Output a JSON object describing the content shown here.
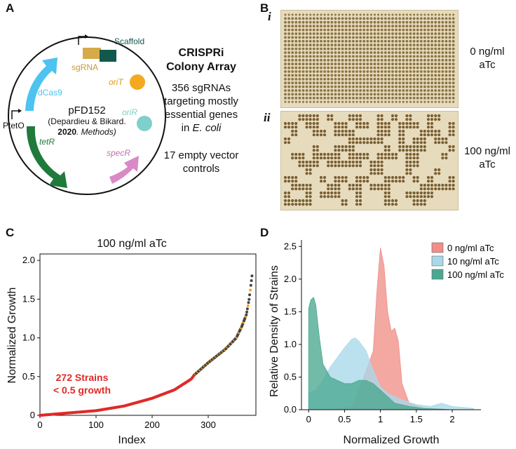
{
  "panels": {
    "A": "A",
    "B": "B",
    "C": "C",
    "D": "D"
  },
  "panelA": {
    "plasmid_name": "pFD152",
    "citation_line1": "(Depardieu & Bikard.",
    "citation_year": "2020",
    "citation_journal": ". Methods)",
    "features": {
      "scaffold": "Scaffold",
      "sgrna": "sgRNA",
      "orit": "oriT",
      "orir": "oriR",
      "dcas9": "dCas9",
      "tetr": "tetR",
      "specr": "specR",
      "ptet": "PtetO"
    },
    "colors": {
      "dcas9": "#4dc3f0",
      "tetr": "#1f7a3c",
      "specr": "#d98ac6",
      "sgrna": "#d6aa4a",
      "scaffold": "#11584d",
      "orit": "#f5a921",
      "orir": "#7fcfcb"
    },
    "title_line1": "CRISPRi",
    "title_line2": "Colony Array",
    "desc_line1": "356 sgRNAs",
    "desc_line2": "targeting mostly",
    "desc_line3": "essential genes",
    "desc_line4_prefix": "in ",
    "desc_line4_italic": "E. coli",
    "controls_line1": "17 empty vector",
    "controls_line2": "controls"
  },
  "panelB": {
    "roman_i": "i",
    "roman_ii": "ii",
    "label_i_line1": "0 ng/ml",
    "label_i_line2": "aTc",
    "label_ii_line1": "100 ng/ml",
    "label_ii_line2": "aTc"
  },
  "chart_data": [
    {
      "type": "scatter",
      "title": "100 ng/ml aTc",
      "xlabel": "Index",
      "ylabel": "Normalized Growth",
      "xlim": [
        0,
        385
      ],
      "ylim": [
        0,
        2.0
      ],
      "xticks": [
        "0",
        "100",
        "200",
        "300"
      ],
      "yticks": [
        "0",
        "0.5",
        "1.0",
        "1.5",
        "2.0"
      ],
      "annotation_line1": "272 Strains",
      "annotation_line2": "< 0.5 growth",
      "curve_points": [
        [
          0,
          0.0
        ],
        [
          50,
          0.03
        ],
        [
          100,
          0.06
        ],
        [
          150,
          0.12
        ],
        [
          200,
          0.22
        ],
        [
          240,
          0.33
        ],
        [
          270,
          0.47
        ],
        [
          275,
          0.52
        ],
        [
          300,
          0.68
        ],
        [
          330,
          0.85
        ],
        [
          350,
          1.0
        ],
        [
          360,
          1.15
        ],
        [
          368,
          1.3
        ],
        [
          373,
          1.5
        ],
        [
          378,
          1.8
        ]
      ],
      "n_points": 373,
      "red_threshold_index": 272,
      "colors": {
        "low": "#e02a27",
        "high": "#444444",
        "control": "#f5a921"
      }
    },
    {
      "type": "area",
      "xlabel": "Normalized Growth",
      "ylabel": "Relative Density of Strains",
      "xlim": [
        -0.1,
        2.4
      ],
      "ylim": [
        0,
        2.6
      ],
      "xticks": [
        "0",
        "0.5",
        "1",
        "1.5",
        "2"
      ],
      "yticks": [
        "0.0",
        "0.5",
        "1.0",
        "1.5",
        "2.0",
        "2.5"
      ],
      "legend_position": "top-right",
      "series": [
        {
          "name": "0 ng/ml aTc",
          "color": "#ef8f88",
          "x": [
            0.0,
            0.3,
            0.6,
            0.7,
            0.8,
            0.9,
            0.95,
            1.0,
            1.05,
            1.1,
            1.15,
            1.2,
            1.25,
            1.3,
            1.4,
            1.6,
            2.0,
            2.3
          ],
          "y": [
            0.0,
            0.0,
            0.05,
            0.3,
            0.6,
            0.9,
            1.8,
            2.48,
            2.2,
            1.5,
            1.2,
            1.25,
            1.05,
            0.4,
            0.1,
            0.03,
            0.0,
            0.0
          ]
        },
        {
          "name": "10 ng/ml aTc",
          "color": "#a9d9e9",
          "x": [
            0.0,
            0.1,
            0.2,
            0.3,
            0.4,
            0.5,
            0.6,
            0.65,
            0.7,
            0.8,
            0.9,
            1.0,
            1.1,
            1.2,
            1.3,
            1.5,
            1.7,
            1.85,
            2.0,
            2.3
          ],
          "y": [
            0.25,
            0.3,
            0.45,
            0.65,
            0.8,
            0.95,
            1.08,
            1.1,
            1.05,
            0.9,
            0.6,
            0.35,
            0.25,
            0.2,
            0.15,
            0.08,
            0.05,
            0.1,
            0.05,
            0.02
          ]
        },
        {
          "name": "100 ng/ml aTc",
          "color": "#4aa891",
          "x": [
            0.0,
            0.03,
            0.07,
            0.1,
            0.15,
            0.2,
            0.3,
            0.4,
            0.5,
            0.6,
            0.7,
            0.8,
            0.9,
            1.0,
            1.2,
            1.4,
            1.6,
            2.0,
            2.3
          ],
          "y": [
            1.55,
            1.68,
            1.72,
            1.6,
            1.1,
            0.7,
            0.5,
            0.45,
            0.4,
            0.4,
            0.45,
            0.45,
            0.4,
            0.3,
            0.1,
            0.05,
            0.02,
            0.0,
            0.0
          ]
        }
      ]
    }
  ]
}
